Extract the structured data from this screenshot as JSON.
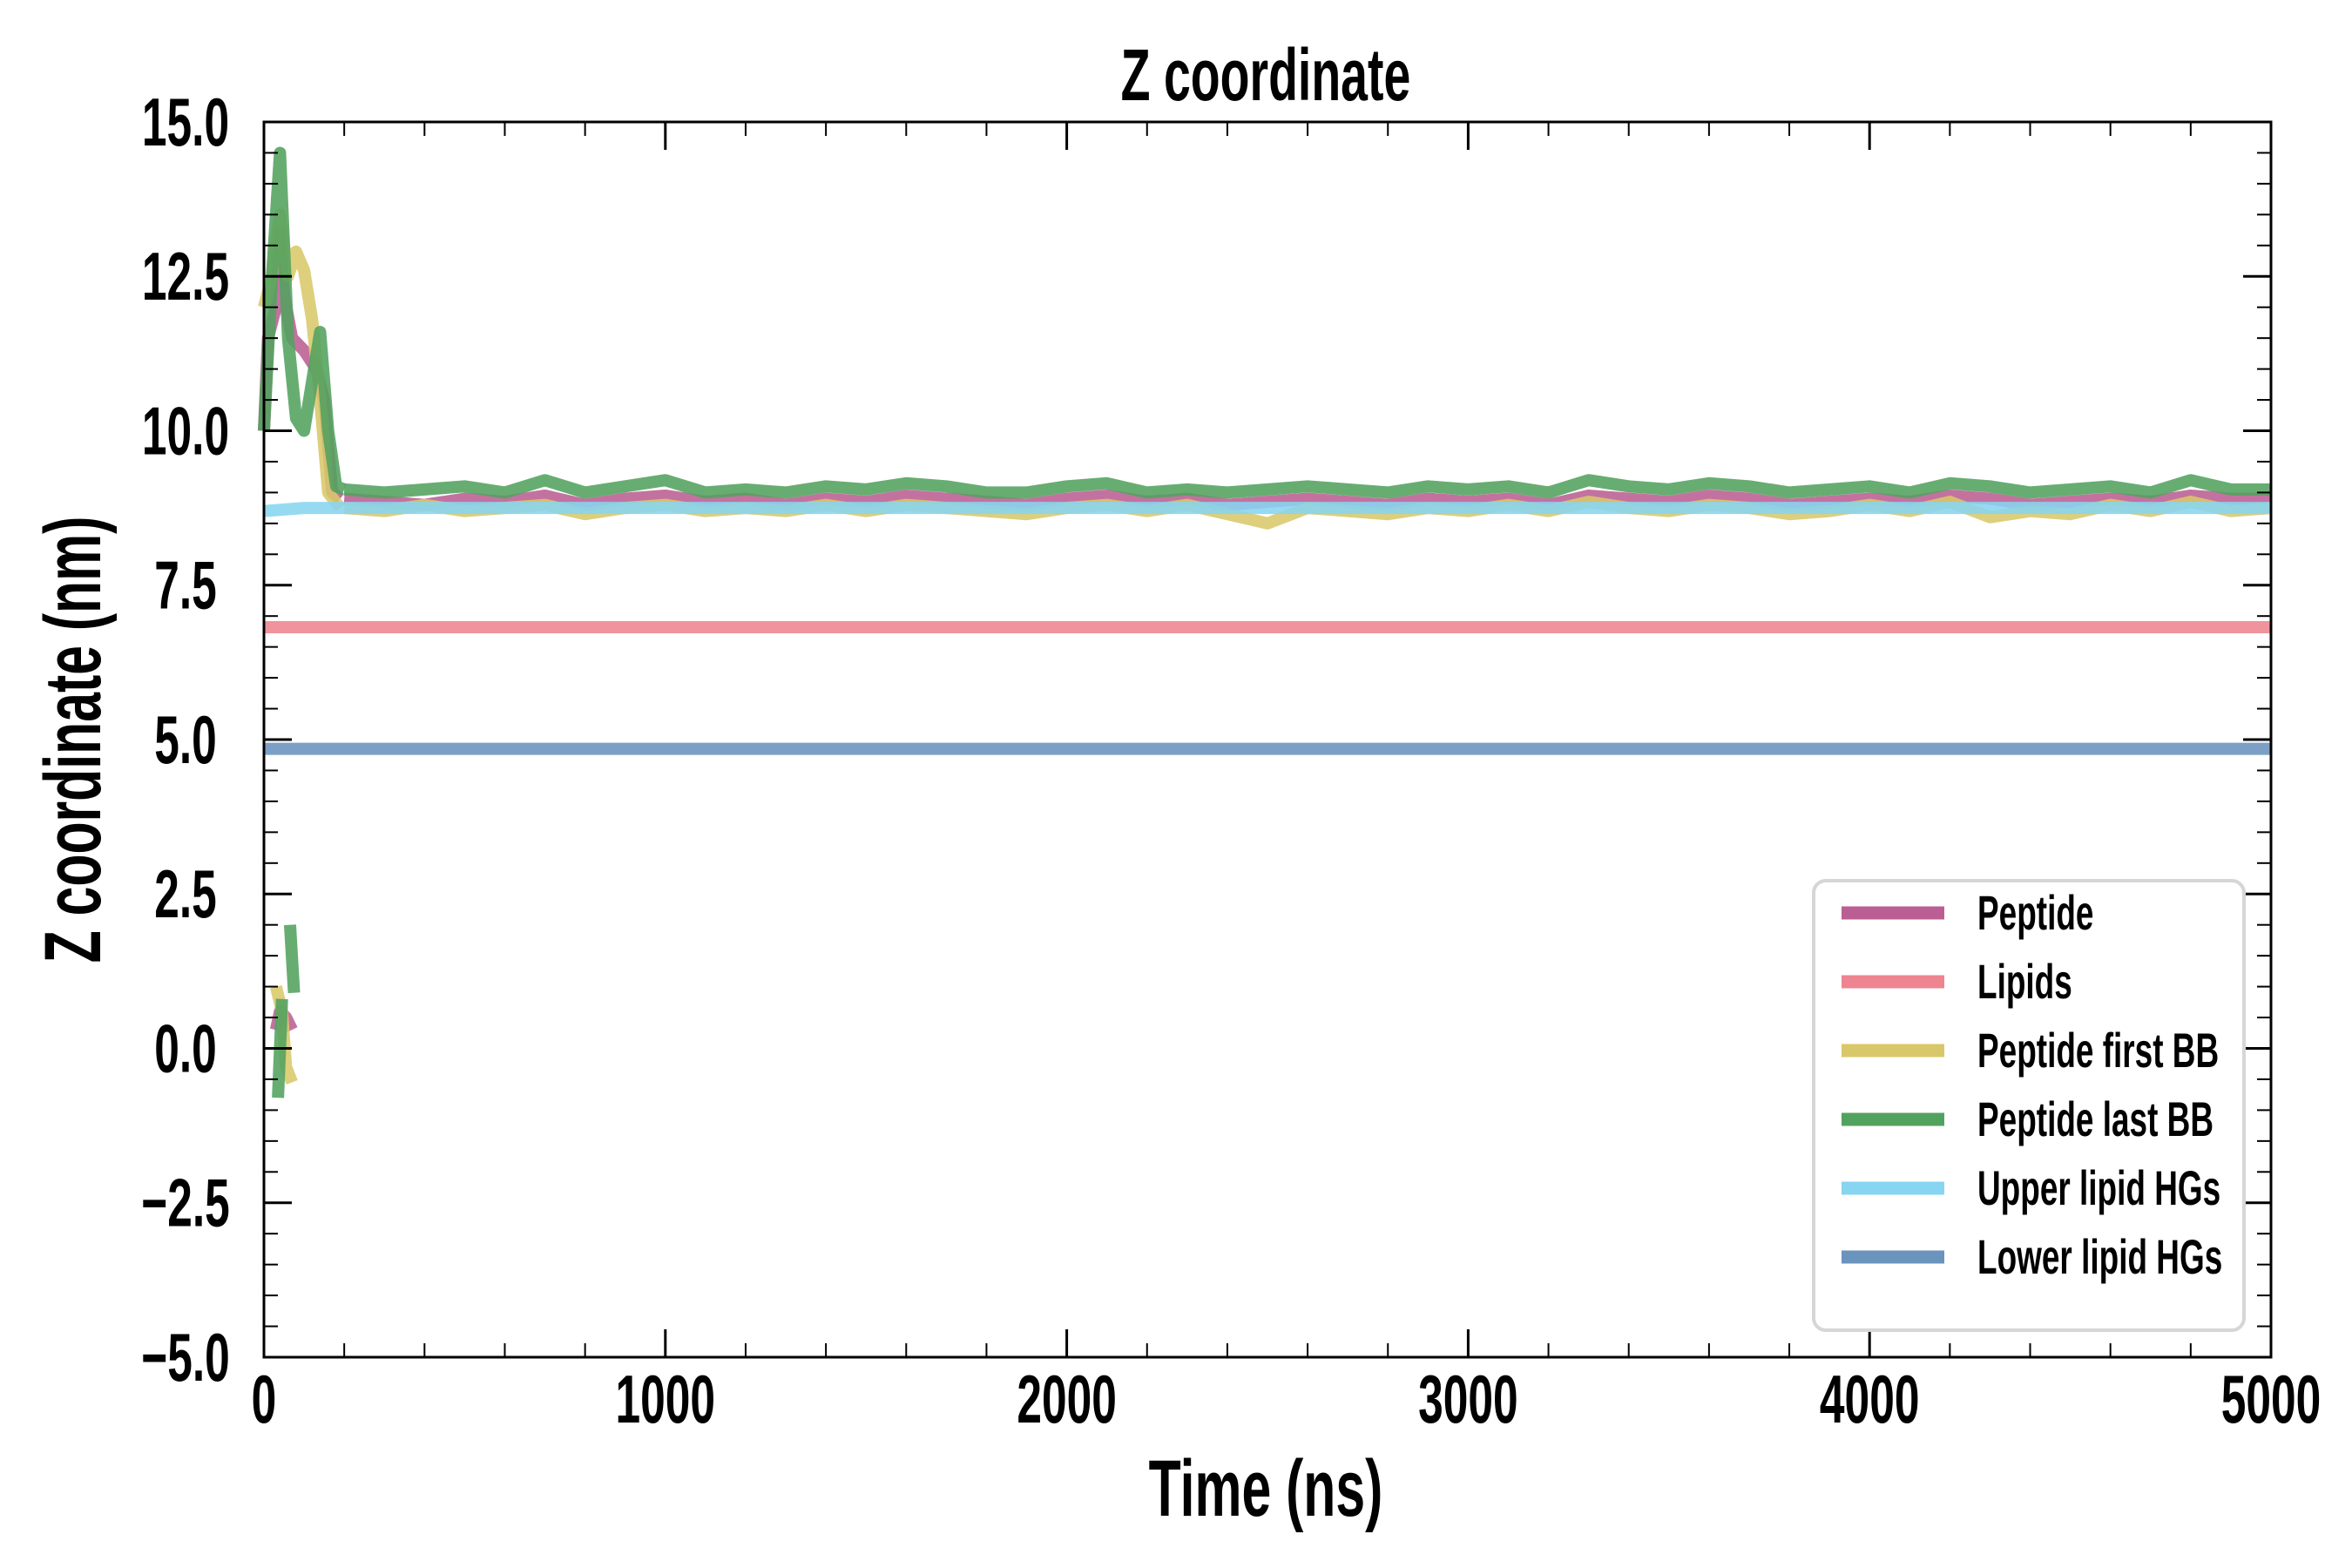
{
  "chart_data": {
    "type": "line",
    "title": "Z coordinate",
    "xlabel": "Time (ns)",
    "ylabel": "Z coordinate (nm)",
    "xlim": [
      0,
      5000
    ],
    "ylim": [
      -5.0,
      15.0
    ],
    "xticks": [
      0,
      1000,
      2000,
      3000,
      4000,
      5000
    ],
    "xtick_labels": [
      "0",
      "1000",
      "2000",
      "3000",
      "4000",
      "5000"
    ],
    "yticks": [
      15.0,
      12.5,
      10.0,
      7.5,
      5.0,
      2.5,
      0.0,
      -2.5,
      -5.0
    ],
    "ytick_labels": [
      "15.0",
      "12.5",
      "10.0",
      "7.5",
      "5.0",
      "2.5",
      "0.0",
      "−2.5",
      "−5.0"
    ],
    "x_minor_step": 200,
    "y_minor_step": 0.5,
    "grid": false,
    "legend_position": "lower-right",
    "steady_x": [
      200,
      300,
      400,
      500,
      600,
      700,
      800,
      900,
      1000,
      1100,
      1200,
      1300,
      1400,
      1500,
      1600,
      1700,
      1800,
      1900,
      2000,
      2100,
      2200,
      2300,
      2400,
      2500,
      2600,
      2700,
      2800,
      2900,
      3000,
      3100,
      3200,
      3300,
      3400,
      3500,
      3600,
      3700,
      3800,
      3900,
      4000,
      4100,
      4200,
      4300,
      4400,
      4500,
      4600,
      4700,
      4800,
      4900,
      5000
    ],
    "series": [
      {
        "name": "Peptide",
        "color": "#BB5E93",
        "early": [
          [
            [
              0,
              10.0
            ],
            [
              10,
              11.5
            ],
            [
              30,
              12.0
            ],
            [
              40,
              13.2
            ],
            [
              50,
              12.2
            ],
            [
              70,
              11.5
            ],
            [
              100,
              11.3
            ],
            [
              130,
              11.0
            ],
            [
              150,
              10.5
            ],
            [
              170,
              9.0
            ],
            [
              190,
              8.9
            ]
          ],
          [
            [
              30,
              0.3
            ],
            [
              40,
              0.6
            ],
            [
              55,
              0.5
            ],
            [
              70,
              0.3
            ]
          ]
        ],
        "steady": [
          8.9,
          8.85,
          8.8,
          8.9,
          8.85,
          8.95,
          8.8,
          8.9,
          8.95,
          8.85,
          8.9,
          8.8,
          8.9,
          8.85,
          8.95,
          8.9,
          8.85,
          8.8,
          8.9,
          8.95,
          8.85,
          8.9,
          8.8,
          8.85,
          8.9,
          8.85,
          8.8,
          8.9,
          8.85,
          8.9,
          8.8,
          8.95,
          8.9,
          8.85,
          8.95,
          8.9,
          8.8,
          8.85,
          8.9,
          8.85,
          8.95,
          8.9,
          8.8,
          8.85,
          8.9,
          8.85,
          8.95,
          8.9,
          8.9
        ]
      },
      {
        "name": "Lipids",
        "color": "#EE8490",
        "early": [],
        "steady_const": 6.82
      },
      {
        "name": "Peptide first BB",
        "color": "#D8C86A",
        "early": [
          [
            [
              0,
              12.0
            ],
            [
              20,
              12.5
            ],
            [
              40,
              13.5
            ],
            [
              60,
              12.5
            ],
            [
              80,
              12.9
            ],
            [
              100,
              12.6
            ],
            [
              120,
              11.8
            ],
            [
              140,
              10.5
            ],
            [
              160,
              9.0
            ],
            [
              190,
              8.75
            ]
          ],
          [
            [
              30,
              1.0
            ],
            [
              45,
              0.6
            ],
            [
              55,
              -0.3
            ],
            [
              70,
              -0.55
            ]
          ]
        ],
        "steady": [
          8.75,
          8.7,
          8.8,
          8.7,
          8.75,
          8.8,
          8.65,
          8.75,
          8.8,
          8.7,
          8.75,
          8.7,
          8.8,
          8.7,
          8.8,
          8.75,
          8.7,
          8.65,
          8.75,
          8.8,
          8.7,
          8.8,
          8.65,
          8.5,
          8.75,
          8.7,
          8.65,
          8.75,
          8.7,
          8.8,
          8.7,
          8.85,
          8.75,
          8.7,
          8.8,
          8.75,
          8.65,
          8.7,
          8.8,
          8.7,
          8.85,
          8.6,
          8.7,
          8.65,
          8.8,
          8.7,
          8.85,
          8.7,
          8.75
        ]
      },
      {
        "name": "Peptide last BB",
        "color": "#52A25F",
        "early": [
          [
            [
              0,
              10.0
            ],
            [
              20,
              12.5
            ],
            [
              40,
              14.5
            ],
            [
              60,
              11.5
            ],
            [
              80,
              10.2
            ],
            [
              100,
              10.0
            ],
            [
              120,
              10.8
            ],
            [
              140,
              11.6
            ],
            [
              160,
              10.0
            ],
            [
              180,
              9.1
            ],
            [
              200,
              9.05
            ]
          ],
          [
            [
              35,
              -0.8
            ],
            [
              45,
              0.8
            ]
          ],
          [
            [
              65,
              2.0
            ],
            [
              75,
              0.9
            ]
          ]
        ],
        "steady": [
          9.05,
          9.0,
          9.05,
          9.1,
          9.0,
          9.2,
          9.0,
          9.1,
          9.2,
          9.0,
          9.05,
          9.0,
          9.1,
          9.05,
          9.15,
          9.1,
          9.0,
          9.0,
          9.1,
          9.15,
          9.0,
          9.05,
          9.0,
          9.05,
          9.1,
          9.05,
          9.0,
          9.1,
          9.05,
          9.1,
          9.0,
          9.2,
          9.1,
          9.05,
          9.15,
          9.1,
          9.0,
          9.05,
          9.1,
          9.0,
          9.15,
          9.1,
          9.0,
          9.05,
          9.1,
          9.0,
          9.2,
          9.05,
          9.05
        ]
      },
      {
        "name": "Upper lipid HGs",
        "color": "#87D5F0",
        "early": [
          [
            [
              0,
              8.7
            ],
            [
              100,
              8.75
            ],
            [
              200,
              8.75
            ]
          ]
        ],
        "steady_const": 8.75
      },
      {
        "name": "Lower lipid HGs",
        "color": "#6A93BD",
        "early": [],
        "steady_const": 4.85
      }
    ]
  }
}
